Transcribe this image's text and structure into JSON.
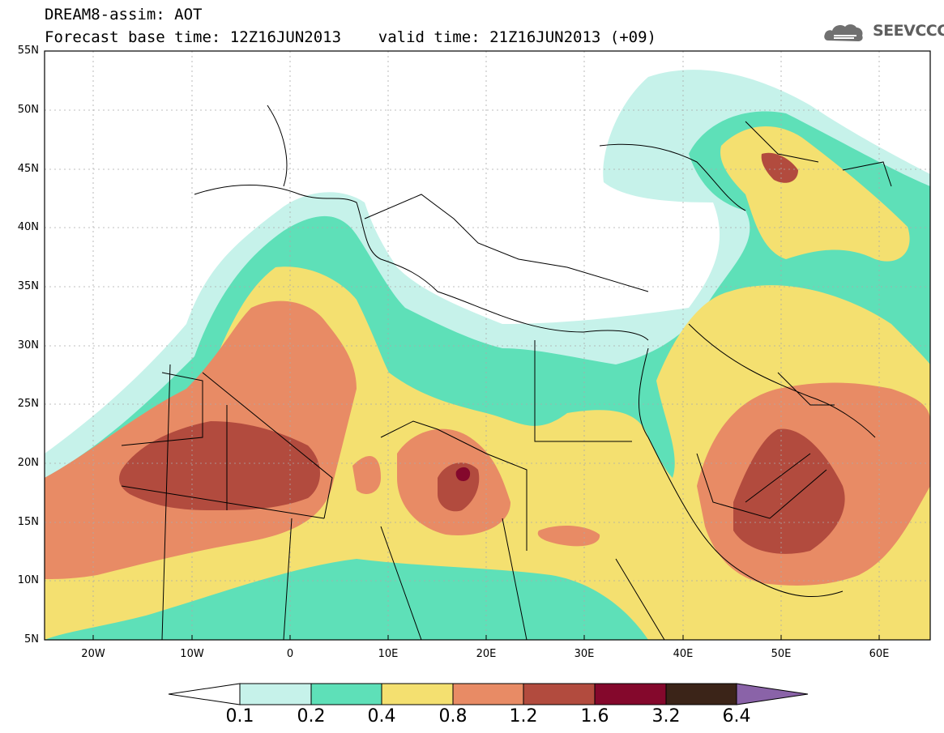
{
  "header": {
    "line1": "DREAM8-assim: AOT",
    "line2": "Forecast base time: 12Z16JUN2013    valid time: 21Z16JUN2013 (+09)",
    "logo_text": "SEEVCCC"
  },
  "map": {
    "lat_labels": [
      "55N",
      "50N",
      "45N",
      "40N",
      "35N",
      "30N",
      "25N",
      "20N",
      "15N",
      "10N",
      "5N"
    ],
    "lon_labels": [
      "20W",
      "10W",
      "0",
      "10E",
      "20E",
      "30E",
      "40E",
      "50E",
      "60E"
    ],
    "domain": {
      "lon_min": -25,
      "lon_max": 65,
      "lat_min": 5,
      "lat_max": 55
    }
  },
  "colorbar": {
    "levels": [
      "0.1",
      "0.2",
      "0.4",
      "0.8",
      "1.2",
      "1.6",
      "3.2",
      "6.4"
    ],
    "colors": [
      "#ffffff",
      "#c6f2ea",
      "#5ee0b8",
      "#f4e070",
      "#e88b65",
      "#b24b3e",
      "#84082c",
      "#3b2418",
      "#8a63a8"
    ]
  },
  "icons": {
    "logo": "cloud-icon"
  }
}
